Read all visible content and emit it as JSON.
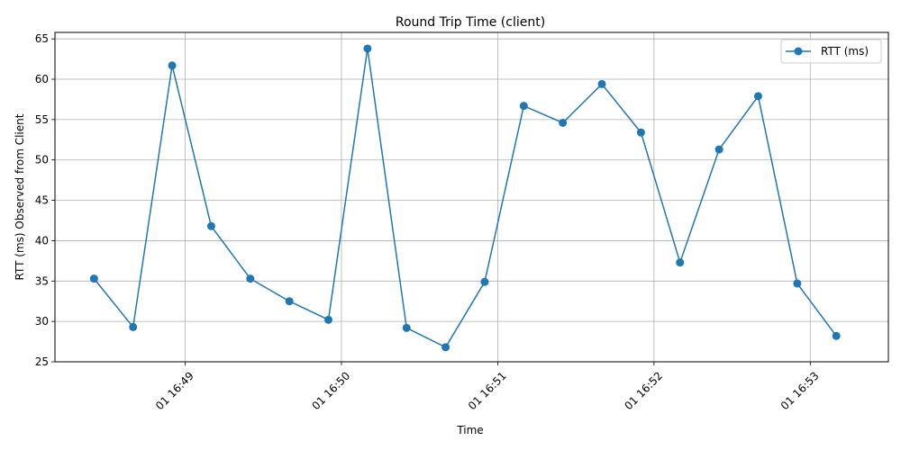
{
  "chart_data": {
    "type": "line",
    "title": "Round Trip Time (client)",
    "xlabel": "Time",
    "ylabel": "RTT (ms) Observed from Client",
    "x_tick_labels": [
      "01 16:49",
      "01 16:50",
      "01 16:51",
      "01 16:52",
      "01 16:53"
    ],
    "x_tick_times": [
      "16:49:00",
      "16:50:00",
      "16:51:00",
      "16:52:00",
      "16:53:00"
    ],
    "xlim": [
      "16:48:10",
      "16:53:30"
    ],
    "y_ticks": [
      25,
      30,
      35,
      40,
      45,
      50,
      55,
      60,
      65
    ],
    "ylim": [
      25,
      65.8
    ],
    "grid": true,
    "legend_position": "top-right",
    "series": [
      {
        "name": "RTT (ms)",
        "color": "#1f77b4",
        "marker": "circle",
        "x": [
          "16:48:25",
          "16:48:40",
          "16:48:55",
          "16:49:10",
          "16:49:25",
          "16:49:40",
          "16:49:55",
          "16:50:10",
          "16:50:25",
          "16:50:40",
          "16:50:55",
          "16:51:10",
          "16:51:25",
          "16:51:40",
          "16:51:55",
          "16:52:10",
          "16:52:25",
          "16:52:40",
          "16:52:55",
          "16:53:10"
        ],
        "y": [
          35.3,
          29.3,
          61.7,
          41.8,
          35.3,
          32.5,
          30.2,
          63.8,
          29.2,
          26.8,
          34.9,
          56.7,
          54.6,
          59.4,
          53.4,
          37.3,
          51.3,
          57.9,
          34.7,
          28.2
        ]
      }
    ]
  }
}
